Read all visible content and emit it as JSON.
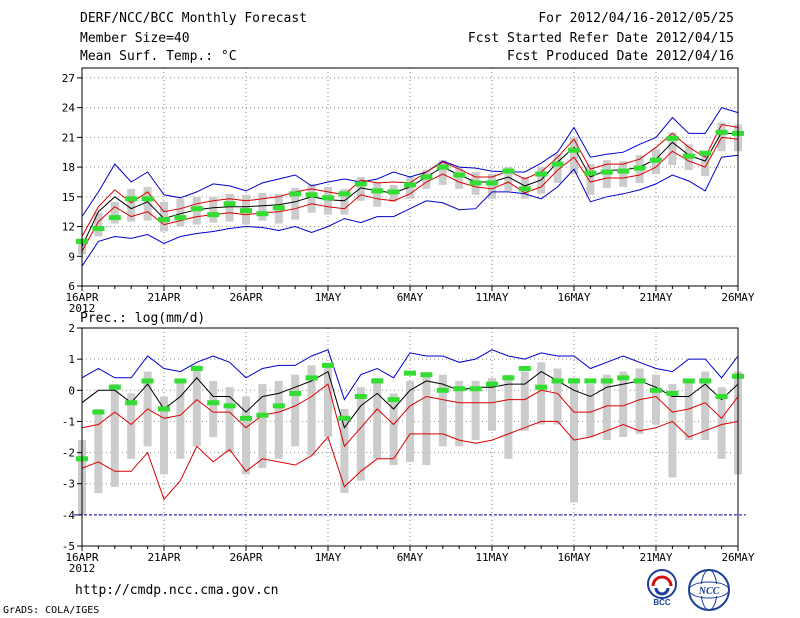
{
  "header": {
    "title": "DERF/NCC/BCC Monthly Forecast",
    "member_size": "Member Size=40",
    "variable": "Mean Surf. Temp.: °C",
    "period": "For 2012/04/16-2012/05/25",
    "started": "Fcst Started Refer Date 2012/04/15",
    "produced": "Fcst Produced Date 2012/04/16"
  },
  "precip_label": "Prec.: log(mm/d)",
  "footer": {
    "url": "http://cmdp.ncc.cma.gov.cn",
    "credit": "GrADS: COLA/IGES",
    "logo_bcc": "BCC",
    "logo_ncc": "NCC"
  },
  "colors": {
    "envelope": "#0000cc",
    "spread": "#dd0000",
    "mean": "#000000",
    "marker": "#33dd33",
    "box": "#cccccc",
    "grid": "#888888"
  },
  "chart_data": [
    {
      "type": "line",
      "title": "Mean Surf. Temp.: °C",
      "x_tick_labels": [
        "16APR",
        "21APR",
        "26APR",
        "1MAY",
        "6MAY",
        "11MAY",
        "16MAY",
        "21MAY",
        "26MAY"
      ],
      "x_tick_days": [
        0,
        5,
        10,
        15,
        20,
        25,
        30,
        35,
        40
      ],
      "year_label": "2012",
      "xlim": [
        0,
        40
      ],
      "ylim": [
        6,
        28
      ],
      "y_ticks": [
        6,
        9,
        12,
        15,
        18,
        21,
        24,
        27
      ],
      "grid": true,
      "series": [
        {
          "name": "max",
          "values": [
            13,
            15.5,
            18.3,
            16.5,
            17.5,
            15.2,
            14.9,
            15.5,
            16.3,
            16.1,
            15.6,
            16.4,
            16.8,
            17.2,
            16.1,
            16.5,
            16.8,
            16.5,
            16.8,
            17.5,
            17,
            17.5,
            18.6,
            18,
            17.9,
            17.6,
            17.5,
            17.5,
            18.4,
            19.5,
            22,
            19,
            19.3,
            19.5,
            20.3,
            21,
            23,
            21.4,
            21.4,
            24,
            23.5
          ]
        },
        {
          "name": "upper",
          "values": [
            11,
            14,
            15.7,
            14.4,
            15.5,
            13.5,
            13.8,
            14.3,
            14.6,
            14.8,
            14.6,
            14.8,
            15,
            15.5,
            15.8,
            15.5,
            15.2,
            16.7,
            16.4,
            16.5,
            16.4,
            17.5,
            18.5,
            17.8,
            17,
            17,
            17.6,
            16.8,
            17.5,
            19,
            20.8,
            17.8,
            18.3,
            18.3,
            18.8,
            20,
            21.4,
            20,
            19,
            22.3,
            22
          ]
        },
        {
          "name": "mean",
          "values": [
            10,
            13.5,
            15,
            13.8,
            14.5,
            12.8,
            13.3,
            13.7,
            13.9,
            14,
            14,
            14.1,
            14.2,
            14.5,
            15,
            14.7,
            14.6,
            15.9,
            15.6,
            15.4,
            16,
            17,
            18,
            17.2,
            16.5,
            16.5,
            17,
            16.1,
            16.7,
            18.5,
            20,
            17,
            17.7,
            17.7,
            18,
            18.8,
            20.5,
            19.2,
            18.6,
            21.5,
            21.3
          ]
        },
        {
          "name": "lower",
          "values": [
            9.5,
            12.5,
            14,
            13,
            13.5,
            12.2,
            12.6,
            13,
            13.2,
            13.4,
            13.2,
            13.4,
            13.5,
            13.8,
            14.3,
            14,
            13.8,
            15.2,
            14.8,
            14.6,
            15.3,
            16.5,
            17.3,
            16.5,
            16,
            15.8,
            16.5,
            15.4,
            16,
            17.7,
            19,
            16.5,
            16.9,
            16.9,
            17.2,
            18,
            19.6,
            18.6,
            18,
            21,
            20.8
          ]
        },
        {
          "name": "min",
          "values": [
            8,
            10.5,
            11,
            10.8,
            11.2,
            10.3,
            11,
            11.3,
            11.5,
            11.8,
            12,
            11.9,
            11.6,
            12,
            11.4,
            12,
            12.8,
            12.4,
            13,
            13,
            13.8,
            14.6,
            14.4,
            13.7,
            13.8,
            15.5,
            15.5,
            15.3,
            14.8,
            16,
            17.8,
            14.5,
            15,
            15.3,
            15.7,
            16.3,
            17.2,
            16.6,
            15.6,
            19,
            19.2
          ]
        },
        {
          "name": "marker",
          "values": [
            10.5,
            11.8,
            12.9,
            14.8,
            14.8,
            12.7,
            12.9,
            13.8,
            13.2,
            14.3,
            13.6,
            13.3,
            13.9,
            15.3,
            15.2,
            14.9,
            15.3,
            16.3,
            15.6,
            15.5,
            16.2,
            17,
            18,
            17.2,
            16.4,
            16.4,
            17.6,
            15.8,
            17.3,
            18.3,
            19.7,
            17.4,
            17.5,
            17.6,
            17.9,
            18.7,
            20.9,
            19.1,
            19.4,
            21.5,
            21.4
          ]
        },
        {
          "name": "box_hi",
          "values": [
            10.8,
            13.4,
            14.5,
            15.8,
            16,
            14.5,
            14.8,
            15,
            15,
            15.3,
            15.2,
            15.4,
            15.3,
            15.9,
            16.3,
            16,
            15.8,
            17,
            16.5,
            16.2,
            17,
            17.7,
            18.7,
            18,
            17.5,
            17.3,
            18,
            17,
            18,
            19.3,
            21,
            18.3,
            18.7,
            18.6,
            19.2,
            19.8,
            21.5,
            20.3,
            19.5,
            22.5,
            22.3
          ]
        },
        {
          "name": "box_lo",
          "values": [
            9.2,
            11,
            12.3,
            12.5,
            12.6,
            11.5,
            12,
            12.2,
            12.4,
            12.5,
            12.2,
            12.6,
            12.3,
            12.7,
            13.4,
            13.2,
            13.2,
            14.6,
            14,
            14.5,
            14.8,
            15.8,
            16.2,
            15.8,
            15.2,
            14.8,
            15.6,
            14.8,
            15.3,
            16.4,
            17.3,
            15.2,
            15.9,
            16,
            16.4,
            17.3,
            18.2,
            17.7,
            17.1,
            19.6,
            19.6
          ]
        }
      ]
    },
    {
      "type": "line",
      "title": "Prec.: log(mm/d)",
      "x_tick_labels": [
        "16APR",
        "21APR",
        "26APR",
        "1MAY",
        "6MAY",
        "11MAY",
        "16MAY",
        "21MAY",
        "26MAY"
      ],
      "x_tick_days": [
        0,
        5,
        10,
        15,
        20,
        25,
        30,
        35,
        40
      ],
      "year_label": "2012",
      "xlim": [
        0,
        40
      ],
      "ylim": [
        -5,
        2
      ],
      "y_ticks": [
        -5,
        -4,
        -3,
        -2,
        -1,
        0,
        1,
        2
      ],
      "grid": true,
      "baseline": -4,
      "series": [
        {
          "name": "max",
          "values": [
            0.4,
            0.7,
            0.4,
            0.4,
            1.1,
            0.7,
            0.6,
            0.9,
            1.1,
            0.9,
            0.4,
            0.7,
            0.8,
            0.8,
            1.1,
            1.3,
            -0.3,
            0.5,
            0.7,
            0.4,
            1.2,
            1.1,
            1.1,
            0.9,
            1,
            1.3,
            1.1,
            1,
            1.2,
            1.1,
            1.1,
            0.7,
            0.9,
            1.1,
            0.9,
            0.7,
            0.6,
            1,
            1,
            0.4,
            1.1
          ]
        },
        {
          "name": "mean",
          "values": [
            -0.4,
            0,
            0,
            -0.4,
            0.2,
            -0.6,
            -0.2,
            0.4,
            -0.2,
            -0.2,
            -0.7,
            -0.2,
            -0.1,
            0.1,
            0.3,
            0.6,
            -1.2,
            -0.5,
            -0.1,
            -0.6,
            0,
            0.3,
            0.2,
            0,
            0.1,
            0.1,
            0.2,
            0.2,
            0.6,
            0.3,
            0,
            -0.2,
            0.1,
            0.2,
            0.3,
            0.1,
            -0.2,
            -0.2,
            0.2,
            -0.3,
            0.2
          ]
        },
        {
          "name": "upper",
          "values": [
            -1.2,
            -1.1,
            -0.7,
            -1.1,
            -0.6,
            -0.9,
            -0.8,
            -0.3,
            -0.7,
            -0.7,
            -1.2,
            -0.8,
            -0.7,
            -0.5,
            -0.2,
            0.2,
            -1.8,
            -1.2,
            -0.6,
            -1.1,
            -0.5,
            -0.2,
            -0.3,
            -0.4,
            -0.4,
            -0.4,
            -0.3,
            -0.3,
            0,
            -0.1,
            -0.7,
            -0.7,
            -0.5,
            -0.5,
            -0.3,
            -0.2,
            -0.7,
            -0.6,
            -0.4,
            -0.9,
            -0.2
          ]
        },
        {
          "name": "lower",
          "values": [
            -2.5,
            -2.3,
            -2.6,
            -2.6,
            -2,
            -3.5,
            -2.9,
            -1.8,
            -2.3,
            -1.9,
            -2.6,
            -2.2,
            -2.3,
            -2.4,
            -2.1,
            -1.5,
            -3.1,
            -2.6,
            -2.2,
            -2.2,
            -1.4,
            -1.4,
            -1.4,
            -1.6,
            -1.7,
            -1.6,
            -1.4,
            -1.2,
            -1,
            -1,
            -1.6,
            -1.5,
            -1.3,
            -1.1,
            -1.3,
            -1.2,
            -1,
            -1.5,
            -1.3,
            -1.1,
            -1
          ]
        },
        {
          "name": "marker",
          "values": [
            -2.2,
            -0.7,
            0.1,
            -0.4,
            0.3,
            -0.6,
            0.3,
            0.7,
            -0.4,
            -0.5,
            -0.9,
            -0.8,
            -0.5,
            -0.1,
            0.4,
            0.8,
            -0.9,
            -0.2,
            0.3,
            -0.3,
            0.55,
            0.5,
            0,
            0.05,
            0.05,
            0.2,
            0.4,
            0.7,
            0.1,
            0.3,
            0.3,
            0.3,
            0.3,
            0.4,
            0.3,
            0,
            -0.1,
            0.3,
            0.3,
            -0.2,
            0.45
          ]
        },
        {
          "name": "box_hi",
          "values": [
            -1.6,
            -0.6,
            0.2,
            -0.1,
            0.6,
            -0.2,
            0.3,
            0.8,
            0.3,
            0.1,
            -0.2,
            0.2,
            0.3,
            0.5,
            0.8,
            0.8,
            -0.6,
            0.1,
            0.4,
            -0.1,
            0.3,
            0.5,
            0.5,
            0.3,
            0.3,
            0.4,
            0.5,
            0.6,
            0.9,
            0.7,
            0.4,
            0.2,
            0.5,
            0.6,
            0.7,
            0.5,
            0.2,
            0.3,
            0.6,
            0.1,
            0.6
          ]
        },
        {
          "name": "box_lo",
          "values": [
            -4,
            -3.3,
            -3.1,
            -2.2,
            -1.8,
            -2.7,
            -2.2,
            -1.8,
            -1.5,
            -2,
            -2.7,
            -2.5,
            -2.2,
            -1.8,
            -2.1,
            -1.5,
            -3.3,
            -2.9,
            -2.2,
            -2.4,
            -2.3,
            -2.4,
            -1.8,
            -1.8,
            -1.6,
            -1.3,
            -2.2,
            -1.3,
            -1.1,
            -1.1,
            -3.6,
            -1.5,
            -1.6,
            -1.5,
            -1.4,
            -1.1,
            -2.8,
            -1.6,
            -1.6,
            -2.2,
            -2.7
          ]
        }
      ]
    }
  ]
}
